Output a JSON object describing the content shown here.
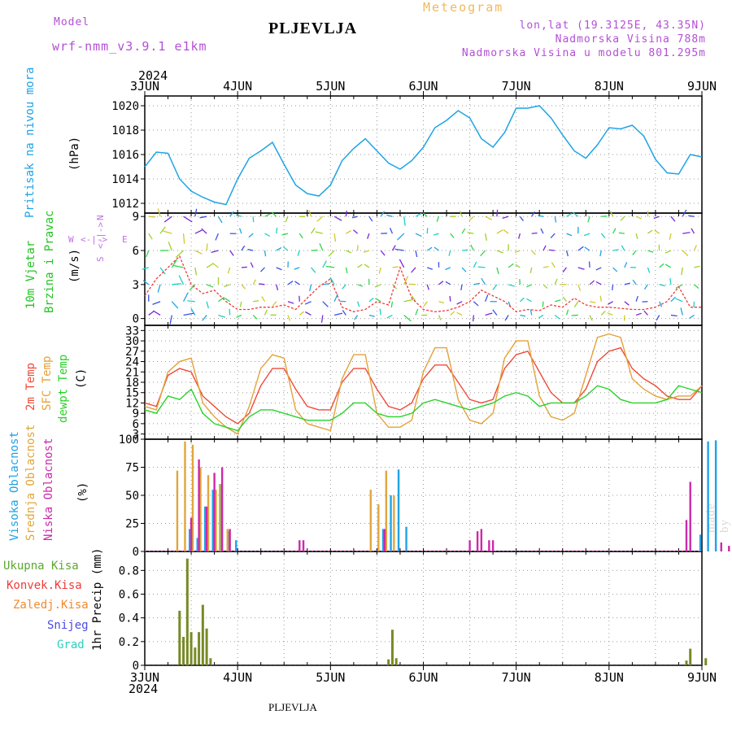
{
  "header": {
    "model_label": "Model",
    "model_name": "wrf-nmm_v3.9.1  e1km",
    "title": "PLJEVLJA",
    "meteogram_label": "Meteogram",
    "coords": "lon,lat (19.3125E, 43.35N)",
    "elevation": "Nadmorska Visina 788m",
    "model_elevation": "Nadmorska Visina u modelu 801.295m"
  },
  "footer": {
    "station": "PLJEVLJA",
    "credit": "made by Angel"
  },
  "time_axis": {
    "year": "2024",
    "day_labels": [
      "3JUN",
      "4JUN",
      "5JUN",
      "6JUN",
      "7JUN",
      "8JUN",
      "9JUN"
    ],
    "start": "2024-06-03 00:00",
    "end": "2024-06-09 00:00"
  },
  "colors": {
    "pressure": "#1fa3e5",
    "wind_label": "#22c422",
    "temp2m": "#ee4b3a",
    "sfc_temp": "#e3a23a",
    "dewpt": "#2ad12a",
    "high_cloud": "#1fa3e5",
    "mid_cloud": "#e0a63c",
    "low_cloud": "#cc2aa8",
    "total_precip": "#5da832",
    "conv_precip": "#ee3b3b",
    "frozen_precip": "#f08a2e",
    "snow": "#4b4bdd",
    "graupel": "#2dd0c0",
    "compass": "#c070e0",
    "bar_precip": "#778a26"
  },
  "compass": {
    "n": "N",
    "w": "W",
    "e": "E",
    "s": "S"
  },
  "chart_data": [
    {
      "type": "line",
      "panel": "pressure",
      "ylabel": "Pritisak na nivou mora",
      "unit": "(hPa)",
      "ylim": [
        1011.2,
        1020.8
      ],
      "yticks": [
        1012,
        1014,
        1016,
        1018,
        1020
      ],
      "x": [
        0,
        3,
        6,
        9,
        12,
        15,
        18,
        21,
        24,
        27,
        30,
        33,
        36,
        39,
        42,
        45,
        48,
        51,
        54,
        57,
        60,
        63,
        66,
        69,
        72,
        75,
        78,
        81,
        84,
        87,
        90,
        93,
        96,
        99,
        102,
        105,
        108,
        111,
        114,
        117,
        120,
        123,
        126,
        129,
        132,
        135,
        138,
        141,
        144
      ],
      "series": [
        {
          "values": [
            1015.0,
            1016.2,
            1016.1,
            1014.0,
            1013.0,
            1012.5,
            1012.1,
            1011.9,
            1014.0,
            1015.7,
            1016.3,
            1017.0,
            1015.2,
            1013.5,
            1012.8,
            1012.6,
            1013.5,
            1015.5,
            1016.5,
            1017.3,
            1016.3,
            1015.3,
            1014.8,
            1015.5,
            1016.6,
            1018.2,
            1018.8,
            1019.6,
            1019.0,
            1017.3,
            1016.6,
            1017.8,
            1019.8,
            1019.8,
            1020.0,
            1019.0,
            1017.6,
            1016.3,
            1015.7,
            1016.8,
            1018.2,
            1018.1,
            1018.4,
            1017.5,
            1015.6,
            1014.5,
            1014.4,
            1016.0,
            1015.8
          ]
        }
      ],
      "grid": true
    },
    {
      "type": "line",
      "panel": "wind",
      "ylabel": "10m Vjetar",
      "ylabel2": "Brzina i Pravac",
      "unit": "(m/s)",
      "ylim": [
        -0.6,
        9.3
      ],
      "yticks": [
        0,
        3,
        6,
        9
      ],
      "x": [
        0,
        3,
        6,
        9,
        12,
        15,
        18,
        21,
        24,
        27,
        30,
        33,
        36,
        39,
        42,
        45,
        48,
        51,
        54,
        57,
        60,
        63,
        66,
        69,
        72,
        75,
        78,
        81,
        84,
        87,
        90,
        93,
        96,
        99,
        102,
        105,
        108,
        111,
        114,
        117,
        120,
        123,
        126,
        129,
        132,
        135,
        138,
        141,
        144
      ],
      "series": [
        {
          "values": [
            2.0,
            3.5,
            4.5,
            5.5,
            3.0,
            2.2,
            2.5,
            1.5,
            0.8,
            0.8,
            1.0,
            1.0,
            1.2,
            0.8,
            1.8,
            2.8,
            3.5,
            1.0,
            0.6,
            0.8,
            1.5,
            1.2,
            4.5,
            1.8,
            0.8,
            0.6,
            0.7,
            1.0,
            1.5,
            2.5,
            2.0,
            1.5,
            0.6,
            0.8,
            0.7,
            1.2,
            1.0,
            1.8,
            1.2,
            1.0,
            1.0,
            0.9,
            0.8,
            0.8,
            1.0,
            1.5,
            2.8,
            1.0,
            1.0
          ]
        }
      ],
      "grid": true
    },
    {
      "type": "line",
      "panel": "temperature",
      "labels": [
        "2m Temp",
        "SFC Temp",
        "dewpt Temp"
      ],
      "unit": "(C)",
      "ylim": [
        1.5,
        34.5
      ],
      "yticks": [
        3,
        6,
        9,
        12,
        15,
        18,
        21,
        24,
        27,
        30,
        33
      ],
      "x": [
        0,
        3,
        6,
        9,
        12,
        15,
        18,
        21,
        24,
        27,
        30,
        33,
        36,
        39,
        42,
        45,
        48,
        51,
        54,
        57,
        60,
        63,
        66,
        69,
        72,
        75,
        78,
        81,
        84,
        87,
        90,
        93,
        96,
        99,
        102,
        105,
        108,
        111,
        114,
        117,
        120,
        123,
        126,
        129,
        132,
        135,
        138,
        141,
        144
      ],
      "series": [
        {
          "name": "2m Temp",
          "values": [
            12,
            11,
            20,
            22,
            21,
            14,
            11,
            8,
            6,
            9,
            17,
            22,
            22,
            16,
            11,
            10,
            10,
            18,
            22,
            22,
            16,
            11,
            10,
            12,
            19,
            23,
            23,
            18,
            13,
            12,
            13,
            22,
            26,
            27,
            21,
            15,
            12,
            12,
            16,
            24,
            27,
            28,
            22,
            19,
            17,
            14,
            13,
            13,
            17
          ]
        },
        {
          "name": "SFC Temp",
          "values": [
            11,
            10,
            21,
            24,
            25,
            12,
            8,
            5,
            3,
            11,
            22,
            26,
            25,
            10,
            6,
            5,
            4,
            19,
            26,
            26,
            9,
            5,
            5,
            7,
            21,
            28,
            28,
            13,
            7,
            6,
            9,
            25,
            30,
            30,
            14,
            8,
            7,
            9,
            20,
            31,
            32,
            31,
            19,
            16,
            14,
            13,
            14,
            14,
            17
          ]
        },
        {
          "name": "dewpt Temp",
          "values": [
            10,
            9,
            14,
            13,
            16,
            9,
            6,
            5,
            4,
            8,
            10,
            10,
            9,
            8,
            7,
            7,
            7,
            9,
            12,
            12,
            9,
            8,
            8,
            9,
            12,
            13,
            12,
            11,
            10,
            11,
            12,
            14,
            15,
            14,
            11,
            12,
            12,
            12,
            14,
            17,
            16,
            13,
            12,
            12,
            12,
            13,
            17,
            16,
            15
          ]
        }
      ],
      "grid": true
    },
    {
      "type": "bar",
      "panel": "clouds",
      "labels": [
        "Visoka Oblacnost",
        "Srednja Oblacnost",
        "Niska Oblacnost"
      ],
      "unit": "(%)",
      "ylim": [
        0,
        100
      ],
      "yticks": [
        0,
        25,
        50,
        75,
        100
      ],
      "series": [
        {
          "name": "Visoka Oblacnost",
          "x": [
            11,
            13,
            15,
            17,
            19,
            21,
            23,
            61,
            63,
            65,
            67,
            143,
            145,
            147
          ],
          "values": [
            20,
            12,
            40,
            55,
            60,
            18,
            10,
            20,
            50,
            73,
            22,
            15,
            98,
            99
          ]
        },
        {
          "name": "Srednja Oblacnost",
          "x": [
            9,
            11,
            13,
            15,
            17,
            19,
            20,
            22,
            59,
            61,
            63,
            65
          ],
          "values": [
            72,
            98,
            95,
            75,
            68,
            55,
            60,
            20,
            55,
            42,
            72,
            50
          ]
        },
        {
          "name": "Niska Oblacnost",
          "x": [
            12,
            14,
            16,
            18,
            20,
            22,
            40,
            41,
            62,
            84,
            86,
            87,
            89,
            90,
            140,
            141,
            149,
            151
          ],
          "values": [
            30,
            82,
            40,
            70,
            75,
            20,
            10,
            10,
            20,
            10,
            18,
            20,
            10,
            10,
            28,
            62,
            8,
            5
          ]
        }
      ],
      "grid": true
    },
    {
      "type": "bar",
      "panel": "precipitation",
      "labels": [
        "Ukupna Kisa",
        "Konvek.Kisa",
        "Zaledj.Kisa",
        "Snijeg",
        "Grad"
      ],
      "ylabel": "1hr Precip (mm)",
      "ylim": [
        0,
        0.96
      ],
      "yticks": [
        0,
        0.2,
        0.4,
        0.6,
        0.8
      ],
      "series": [
        {
          "name": "Ukupna Kisa",
          "x": [
            9,
            10,
            11,
            12,
            13,
            14,
            15,
            16,
            17,
            18,
            63,
            64,
            65,
            140,
            141,
            145
          ],
          "values": [
            0.46,
            0.24,
            0.9,
            0.28,
            0.15,
            0.28,
            0.51,
            0.31,
            0.06,
            0.0,
            0.05,
            0.3,
            0.06,
            0.04,
            0.14,
            0.06
          ]
        }
      ],
      "grid": true
    }
  ]
}
